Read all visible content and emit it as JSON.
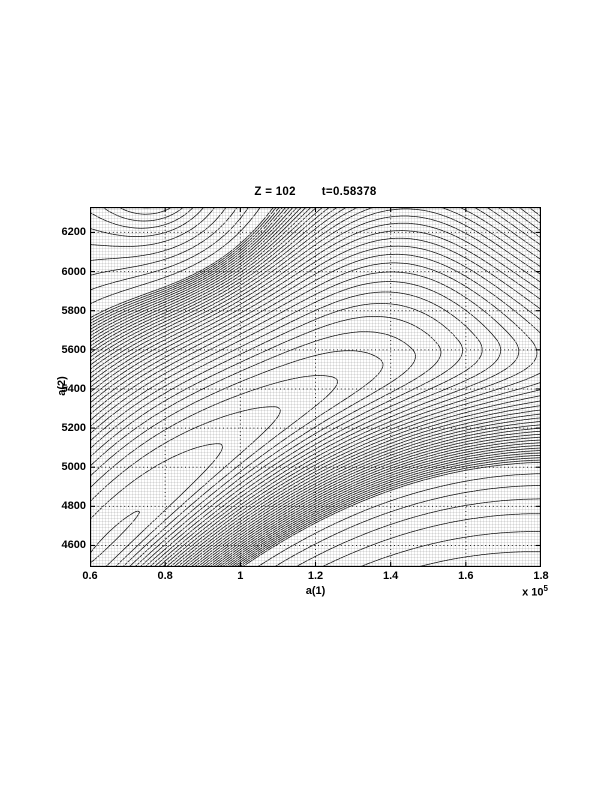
{
  "figure": {
    "title_left": "Z = 102",
    "title_right": "t=0.58378",
    "xlabel": "a(1)",
    "ylabel": "a(2)",
    "x_multiplier_base": "x 10",
    "x_multiplier_exponent": "5"
  },
  "chart_data": {
    "type": "contour",
    "title": "Z = 102    t=0.58378",
    "xlabel": "a(1)",
    "ylabel": "a(2)",
    "x_scale_note": "x-axis values are multiplied by 10^5",
    "xlim": [
      0.6,
      1.8
    ],
    "ylim": [
      4490,
      6330
    ],
    "x_ticks": [
      "0.6",
      "0.8",
      "1",
      "1.2",
      "1.4",
      "1.6",
      "1.8"
    ],
    "y_ticks": [
      "4600",
      "4800",
      "5000",
      "5200",
      "5400",
      "5600",
      "5800",
      "6000",
      "6200"
    ],
    "grid": "dotted",
    "line_color": "#000000",
    "background": "#ffffff",
    "features": [
      "very dense nested contour rings around a sharp peak just above the top-left corner near a(1)=0.73e5",
      "elongated closed contour ellipses along a diagonal valley in the lower left near a(1)=0.8e5, a(2)=4900",
      "sparse open contours sweeping from lower-left to upper-right through the center",
      "dense parallel diagonal contours toward the bottom-right corner",
      "C-shaped contours opening toward the upper-right corner; valley exits right edge near a(2)=5650"
    ],
    "render": {
      "grid_nx": 181,
      "grid_ny": 145,
      "valley": [
        0.03,
        1.3,
        -0.7
      ],
      "flank_above": 20,
      "flank_below": 80,
      "along_amp": 5,
      "along_center": 0.22,
      "peak_amp": 0.55,
      "peak_eps": 0.004,
      "peak_u": 0.13,
      "peak_v": 1.09,
      "peak_vscale": 0.8,
      "corner_amp": 4,
      "corner_u": 1.15,
      "corner_v": 1.02,
      "corner_s": 0.13,
      "levels_linear": {
        "start": 0.85,
        "step": 0.33,
        "end": 13
      },
      "levels_extra": [
        14.5,
        16.5,
        19,
        22,
        26,
        31,
        37,
        44,
        53,
        64,
        77
      ],
      "contour_dash": "2.4 1",
      "grid_dash": "1 2.8"
    }
  }
}
